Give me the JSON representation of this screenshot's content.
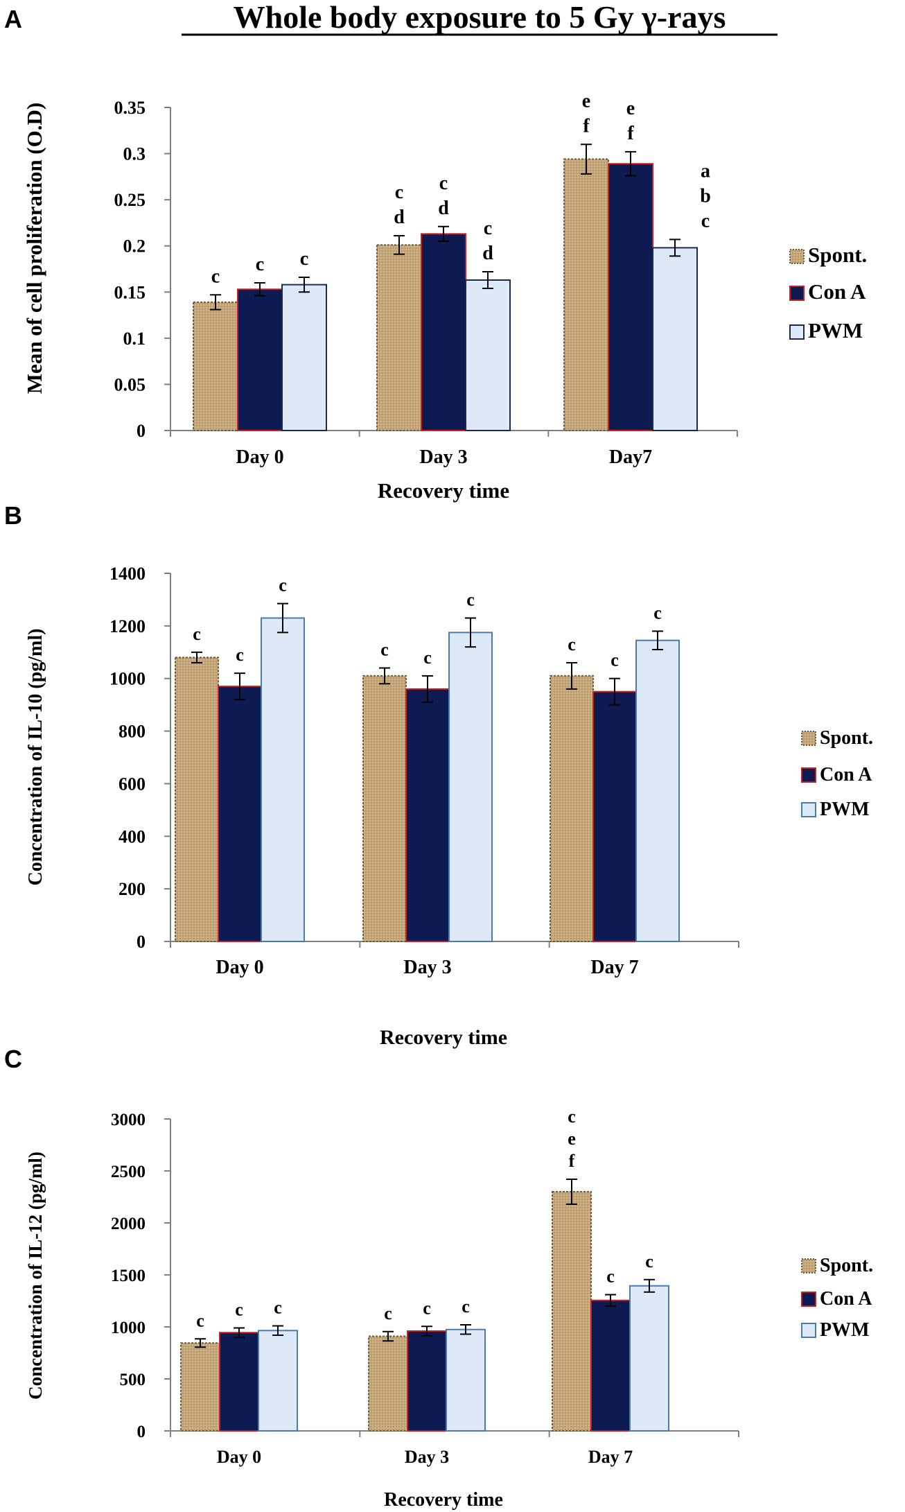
{
  "title": "Whole body exposure to 5 Gy γ-rays",
  "colors": {
    "spont": "#c8a878",
    "spont_line": "#6e5a3a",
    "cona": "#0d1b52",
    "cona_line": "#c81e1e",
    "pwm": "#dde9f7",
    "pwm_line": "#1a2a4a",
    "pwm_line_c": "#4a7ab0"
  },
  "chart_data": [
    {
      "panel_label": "A",
      "type": "bar",
      "categories": [
        "Day 0",
        "Day 3",
        "Day7"
      ],
      "series": [
        {
          "name": "Spont.",
          "values": [
            0.139,
            0.201,
            0.294
          ],
          "errors": [
            0.008,
            0.01,
            0.016
          ],
          "letters": [
            "c",
            "c\nd",
            "e\nf"
          ]
        },
        {
          "name": "Con A",
          "values": [
            0.153,
            0.213,
            0.289
          ],
          "errors": [
            0.007,
            0.008,
            0.013
          ],
          "letters": [
            "c",
            "c\nd",
            "e\nf"
          ]
        },
        {
          "name": "PWM",
          "values": [
            0.158,
            0.163,
            0.198
          ],
          "errors": [
            0.008,
            0.009,
            0.009
          ],
          "letters": [
            "c",
            "c\nd",
            "a\nb\nc"
          ]
        }
      ],
      "yticks": [
        "0",
        "0.05",
        "0.1",
        "0.15",
        "0.2",
        "0.25",
        "0.3",
        "0.35"
      ],
      "ylim": [
        0,
        0.35
      ],
      "ylabel": "Mean of cell proliferation (O.D)",
      "xlabel": "Recovery time",
      "legend": [
        "Spont.",
        "Con A",
        "PWM"
      ]
    },
    {
      "panel_label": "B",
      "type": "bar",
      "categories": [
        "Day 0",
        "Day 3",
        "Day 7"
      ],
      "series": [
        {
          "name": "Spont.",
          "values": [
            1080,
            1010,
            1010
          ],
          "errors": [
            20,
            30,
            50
          ],
          "letters": [
            "c",
            "c",
            "c"
          ]
        },
        {
          "name": "Con A",
          "values": [
            970,
            960,
            950
          ],
          "errors": [
            50,
            50,
            50
          ],
          "letters": [
            "c",
            "c",
            "c"
          ]
        },
        {
          "name": "PWM",
          "values": [
            1230,
            1175,
            1145
          ],
          "errors": [
            55,
            55,
            35
          ],
          "letters": [
            "c",
            "c",
            "c"
          ]
        }
      ],
      "yticks": [
        "0",
        "200",
        "400",
        "600",
        "800",
        "1000",
        "1200",
        "1400"
      ],
      "ylim": [
        0,
        1400
      ],
      "ylabel": "Concentration of IL-10 (pg/ml)",
      "xlabel": "Recovery time",
      "legend": [
        "Spont.",
        "Con A",
        "PWM"
      ]
    },
    {
      "panel_label": "C",
      "type": "bar",
      "categories": [
        "Day 0",
        "Day 3",
        "Day 7"
      ],
      "series": [
        {
          "name": "Spont.",
          "values": [
            845,
            910,
            2300
          ],
          "errors": [
            40,
            45,
            120
          ],
          "letters": [
            "c",
            "c",
            "c\ne\nf"
          ]
        },
        {
          "name": "Con A",
          "values": [
            945,
            960,
            1255
          ],
          "errors": [
            45,
            45,
            55
          ],
          "letters": [
            "c",
            "c",
            "c"
          ]
        },
        {
          "name": "PWM",
          "values": [
            965,
            975,
            1395
          ],
          "errors": [
            45,
            45,
            60
          ],
          "letters": [
            "c",
            "c",
            "c"
          ]
        }
      ],
      "yticks": [
        "0",
        "500",
        "1000",
        "1500",
        "2000",
        "2500",
        "3000"
      ],
      "ylim": [
        0,
        3000
      ],
      "ylabel": "Concentration of IL-12 (pg/ml)",
      "xlabel": "Recovery time",
      "legend": [
        "Spont.",
        "Con A",
        "PWM"
      ]
    }
  ]
}
